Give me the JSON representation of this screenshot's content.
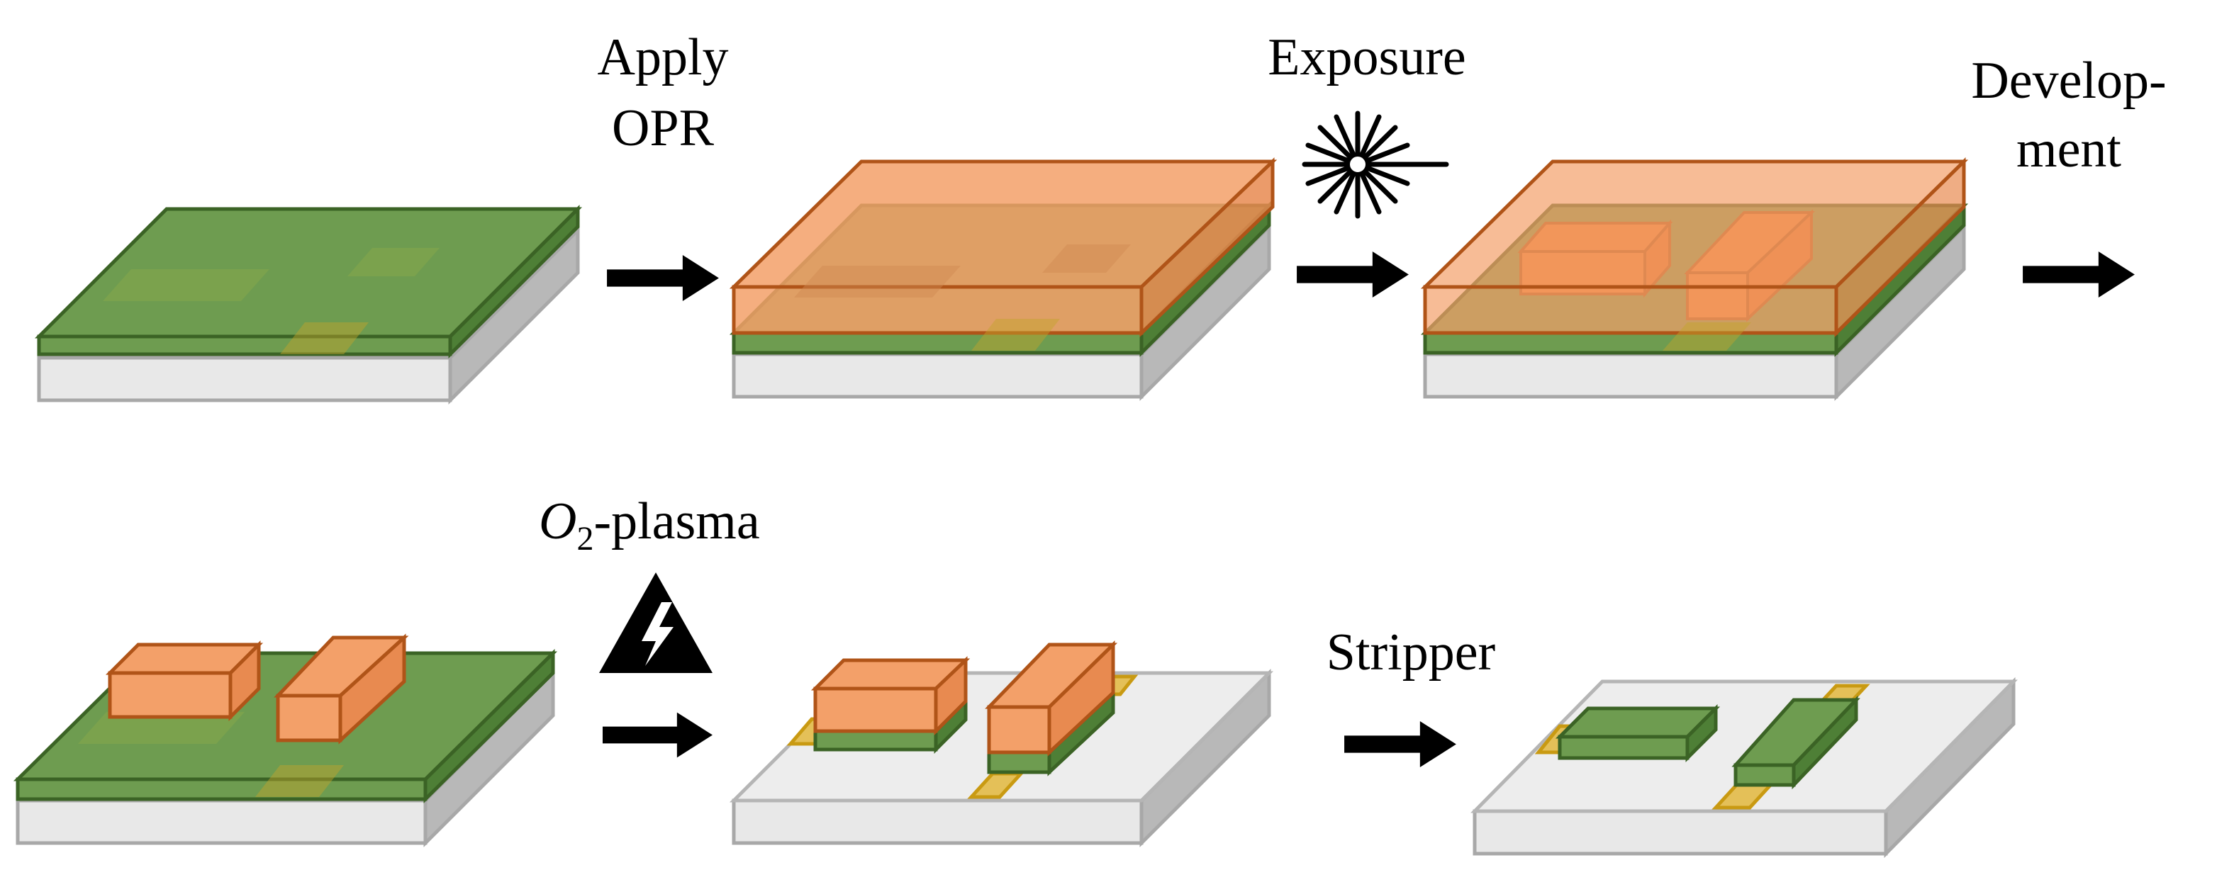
{
  "labels": {
    "apply_opr_line1": "Apply",
    "apply_opr_line2": "OPR",
    "exposure": "Exposure",
    "development_line1": "Develop-",
    "development_line2": "ment",
    "o2_plasma_o": "O",
    "o2_plasma_sub": "2",
    "o2_plasma_rest": "-plasma",
    "stripper": "Stripper"
  },
  "icons": {
    "exposure": "starburst-light-icon",
    "o2_plasma": "lightning-warning-icon",
    "step_arrow": "right-arrow-icon"
  },
  "colors": {
    "substrate_top": "#e9e9e9",
    "substrate_side": "#b4b4b4",
    "substrate_edge": "#a6a6a6",
    "green_layer": "#6d9a4e",
    "green_edge": "#375f22",
    "opr_fill": "#f5a46e",
    "opr_edge": "#b85a20",
    "pattern_block": "#ee8036",
    "electrode_gold": "#d6a518",
    "arrow": "#000000"
  }
}
